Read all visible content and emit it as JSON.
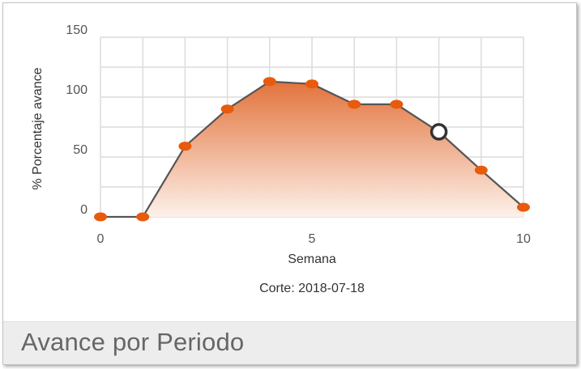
{
  "panel": {
    "title": "Avance por Periodo"
  },
  "chart_data": {
    "type": "area",
    "x": [
      0,
      1,
      2,
      3,
      4,
      5,
      6,
      7,
      8,
      9,
      10
    ],
    "series": [
      {
        "values": [
          0,
          0,
          59,
          90,
          113,
          111,
          94,
          94,
          71,
          39,
          8
        ]
      }
    ],
    "xlabel": "Semana",
    "ylabel": "% Porcentaje avance",
    "subtitle": "Corte: 2018-07-18",
    "xlim": [
      0,
      10
    ],
    "ylim": [
      0,
      150
    ],
    "xticks": [
      0,
      5,
      10
    ],
    "yticks": [
      0,
      50,
      100,
      150
    ],
    "grid": true,
    "highlighted_index": 8,
    "colors": {
      "line": "#555555",
      "marker": "#e85a0c",
      "fill_top": "#e2733c",
      "fill_bottom": "#fdf1ea",
      "grid": "#dcdcdc"
    }
  }
}
